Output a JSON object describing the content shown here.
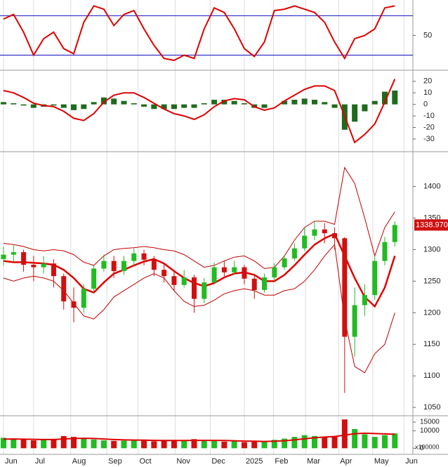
{
  "chart_data": [
    {
      "type": "line",
      "x": [
        0,
        1,
        2,
        3,
        4,
        5,
        6,
        7,
        8,
        9,
        10,
        11,
        12,
        13,
        14,
        15,
        16,
        17,
        18,
        19,
        20,
        21,
        22,
        23,
        24,
        25,
        26,
        27,
        28,
        29,
        30,
        31,
        32,
        33,
        34,
        35,
        36,
        37,
        38,
        39
      ],
      "values": [
        75,
        82,
        55,
        20,
        45,
        55,
        30,
        22,
        70,
        95,
        90,
        65,
        82,
        88,
        60,
        35,
        15,
        12,
        20,
        15,
        60,
        92,
        85,
        60,
        30,
        18,
        40,
        88,
        90,
        95,
        90,
        85,
        70,
        40,
        15,
        45,
        50,
        60,
        92,
        95
      ],
      "color": "#e00000",
      "ylim": [
        -3,
        104
      ],
      "yticks": [
        50
      ],
      "ref_lines": [
        80,
        20
      ],
      "ref_color": "#1010c0"
    },
    {
      "type": "macd",
      "x": [
        0,
        1,
        2,
        3,
        4,
        5,
        6,
        7,
        8,
        9,
        10,
        11,
        12,
        13,
        14,
        15,
        16,
        17,
        18,
        19,
        20,
        21,
        22,
        23,
        24,
        25,
        26,
        27,
        28,
        29,
        30,
        31,
        32,
        33,
        34,
        35,
        36,
        37,
        38,
        39
      ],
      "values": [
        12,
        10,
        6,
        1,
        -1,
        -2,
        -6,
        -12,
        -14,
        -8,
        2,
        8,
        10,
        10,
        6,
        1,
        -4,
        -8,
        -10,
        -13,
        -9,
        -2,
        3,
        5,
        4,
        -2,
        -5,
        -3,
        3,
        8,
        13,
        16,
        16,
        12,
        -10,
        -33,
        -26,
        -17,
        2,
        22
      ],
      "histogram": [
        2,
        1,
        -1,
        -3,
        -2,
        -1,
        -3,
        -5,
        -4,
        2,
        6,
        5,
        3,
        1,
        -2,
        -4,
        -4,
        -4,
        -3,
        -3,
        1,
        4,
        4,
        3,
        1,
        -3,
        -3,
        0,
        3,
        4,
        5,
        4,
        2,
        -3,
        -22,
        -15,
        -6,
        3,
        11,
        12
      ],
      "color": "#e00000",
      "histogram_color": "#1e6b1e",
      "ylim": [
        -41,
        29
      ],
      "yticks": [
        20,
        10,
        0,
        -10,
        -20,
        -30
      ]
    },
    {
      "type": "candlestick",
      "x": [
        0,
        1,
        2,
        3,
        4,
        5,
        6,
        7,
        8,
        9,
        10,
        11,
        12,
        13,
        14,
        15,
        16,
        17,
        18,
        19,
        20,
        21,
        22,
        23,
        24,
        25,
        26,
        27,
        28,
        29,
        30,
        31,
        32,
        33,
        34,
        35,
        36,
        37,
        38,
        39
      ],
      "open": [
        1285,
        1292,
        1296,
        1276,
        1272,
        1278,
        1258,
        1218,
        1208,
        1238,
        1270,
        1282,
        1266,
        1282,
        1294,
        1284,
        1268,
        1258,
        1244,
        1256,
        1222,
        1248,
        1272,
        1264,
        1272,
        1254,
        1236,
        1256,
        1272,
        1286,
        1302,
        1322,
        1332,
        1326,
        1318,
        1162,
        1212,
        1228,
        1282,
        1312
      ],
      "high": [
        1305,
        1308,
        1300,
        1290,
        1290,
        1285,
        1262,
        1240,
        1245,
        1275,
        1292,
        1290,
        1290,
        1302,
        1300,
        1290,
        1278,
        1268,
        1268,
        1260,
        1255,
        1280,
        1282,
        1282,
        1276,
        1258,
        1262,
        1278,
        1292,
        1310,
        1335,
        1345,
        1342,
        1335,
        1320,
        1240,
        1245,
        1290,
        1320,
        1345
      ],
      "low": [
        1275,
        1280,
        1265,
        1250,
        1262,
        1240,
        1205,
        1185,
        1200,
        1232,
        1265,
        1255,
        1260,
        1275,
        1275,
        1258,
        1248,
        1235,
        1240,
        1200,
        1215,
        1245,
        1258,
        1260,
        1245,
        1222,
        1232,
        1250,
        1268,
        1282,
        1298,
        1315,
        1310,
        1300,
        1073,
        1130,
        1195,
        1220,
        1275,
        1305
      ],
      "close": [
        1292,
        1296,
        1276,
        1272,
        1278,
        1258,
        1218,
        1208,
        1238,
        1270,
        1282,
        1266,
        1282,
        1294,
        1284,
        1268,
        1258,
        1244,
        1256,
        1222,
        1248,
        1272,
        1264,
        1272,
        1254,
        1236,
        1256,
        1272,
        1286,
        1302,
        1322,
        1332,
        1326,
        1318,
        1162,
        1212,
        1228,
        1282,
        1312,
        1338.97
      ],
      "last_label": "1338.970",
      "up_color": "#22bb22",
      "down_color": "#d01010",
      "series": [
        {
          "color": "#e00000",
          "values": [
            1282,
            1280,
            1280,
            1279,
            1278,
            1276,
            1268,
            1255,
            1238,
            1232,
            1248,
            1262,
            1268,
            1275,
            1281,
            1285,
            1278,
            1266,
            1255,
            1247,
            1242,
            1247,
            1256,
            1262,
            1264,
            1260,
            1250,
            1250,
            1260,
            1275,
            1292,
            1308,
            1318,
            1325,
            1290,
            1255,
            1225,
            1210,
            1240,
            1290
          ]
        },
        {
          "color": "#c00000",
          "values": [
            1310,
            1308,
            1305,
            1300,
            1298,
            1300,
            1298,
            1292,
            1280,
            1275,
            1290,
            1300,
            1302,
            1303,
            1305,
            1303,
            1300,
            1298,
            1292,
            1282,
            1272,
            1275,
            1282,
            1288,
            1290,
            1282,
            1270,
            1272,
            1290,
            1315,
            1335,
            1345,
            1345,
            1340,
            1430,
            1405,
            1350,
            1290,
            1335,
            1360
          ]
        },
        {
          "color": "#c00000",
          "values": [
            1255,
            1250,
            1255,
            1258,
            1255,
            1250,
            1235,
            1215,
            1195,
            1190,
            1205,
            1225,
            1235,
            1245,
            1255,
            1262,
            1255,
            1235,
            1218,
            1210,
            1212,
            1220,
            1230,
            1235,
            1238,
            1235,
            1228,
            1228,
            1235,
            1238,
            1250,
            1268,
            1290,
            1308,
            1190,
            1115,
            1105,
            1135,
            1150,
            1200
          ]
        }
      ],
      "ylim": [
        1038,
        1454
      ],
      "yticks": [
        1050,
        1100,
        1150,
        1200,
        1250,
        1300,
        1350,
        1400
      ]
    },
    {
      "type": "bar",
      "x": [
        0,
        1,
        2,
        3,
        4,
        5,
        6,
        7,
        8,
        9,
        10,
        11,
        12,
        13,
        14,
        15,
        16,
        17,
        18,
        19,
        20,
        21,
        22,
        23,
        24,
        25,
        26,
        27,
        28,
        29,
        30,
        31,
        32,
        33,
        34,
        35,
        36,
        37,
        38,
        39
      ],
      "values": [
        6000,
        5500,
        5000,
        4500,
        4800,
        5200,
        7000,
        6500,
        5500,
        5000,
        4500,
        4200,
        4300,
        4800,
        4500,
        4000,
        4200,
        4600,
        4300,
        5200,
        4800,
        4200,
        3800,
        4000,
        3500,
        3800,
        4000,
        4800,
        5500,
        6500,
        7500,
        7000,
        6500,
        7000,
        16500,
        11000,
        8000,
        6500,
        7500,
        8500
      ],
      "up_color": "#22bb22",
      "down_color": "#d01010",
      "series": [
        {
          "color": "#e00000",
          "values": [
            5200,
            5300,
            5200,
            5100,
            5000,
            5000,
            5300,
            5600,
            5700,
            5600,
            5300,
            5000,
            4800,
            4700,
            4600,
            4500,
            4400,
            4400,
            4400,
            4500,
            4500,
            4500,
            4400,
            4300,
            4100,
            4000,
            3900,
            4000,
            4300,
            4800,
            5400,
            6000,
            6400,
            6700,
            7500,
            8300,
            8600,
            8400,
            8200,
            8000
          ]
        }
      ],
      "ylim": [
        -3500,
        17000
      ],
      "yticks": [
        0,
        10000,
        15000
      ],
      "unit_label": "x100000",
      "xlim": [
        -0.35,
        40.8
      ],
      "xticks": [
        {
          "value": 0,
          "label": "Jun"
        },
        {
          "value": 3,
          "label": "Jul"
        },
        {
          "value": 6.7,
          "label": "Aug"
        },
        {
          "value": 10.3,
          "label": "Sep"
        },
        {
          "value": 13.4,
          "label": "Oct"
        },
        {
          "value": 17.1,
          "label": "Nov"
        },
        {
          "value": 20.6,
          "label": "Dec"
        },
        {
          "value": 24,
          "label": "2025"
        },
        {
          "value": 26.9,
          "label": "Feb"
        },
        {
          "value": 30.1,
          "label": "Mar"
        },
        {
          "value": 33.4,
          "label": "Apr"
        },
        {
          "value": 36.8,
          "label": "May"
        },
        {
          "value": 39.9,
          "label": "Jun"
        }
      ]
    }
  ]
}
